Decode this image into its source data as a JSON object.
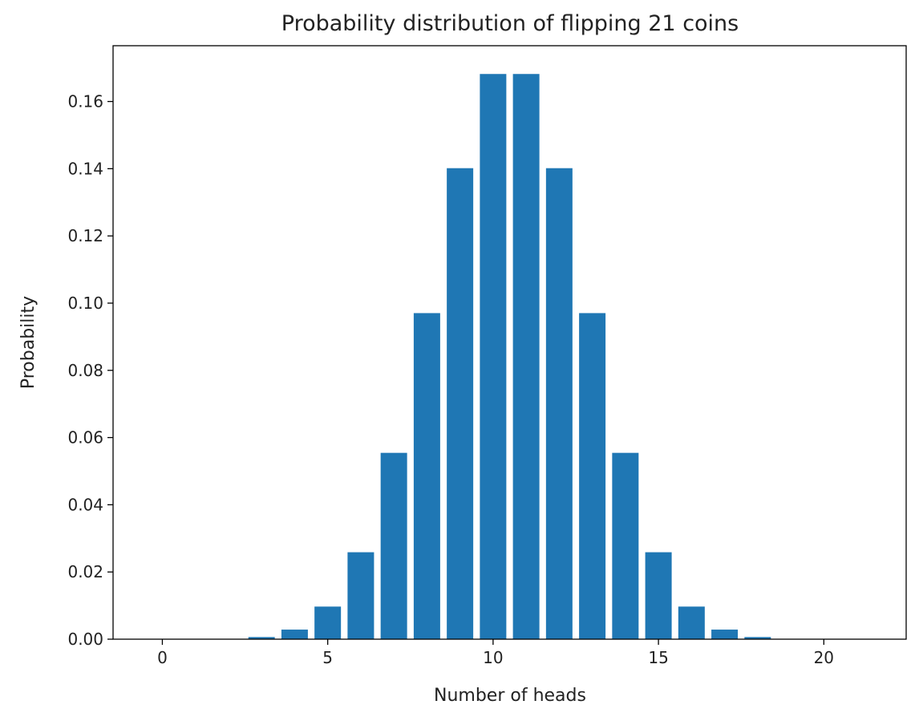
{
  "chart_data": {
    "type": "bar",
    "title": "Probability distribution of flipping 21 coins",
    "xlabel": "Number of heads",
    "ylabel": "Probability",
    "x": [
      0,
      1,
      2,
      3,
      4,
      5,
      6,
      7,
      8,
      9,
      10,
      11,
      12,
      13,
      14,
      15,
      16,
      17,
      18,
      19,
      20,
      21
    ],
    "values": [
      5e-07,
      1e-05,
      0.0001,
      0.000634,
      0.002854,
      0.009703,
      0.025875,
      0.055447,
      0.097031,
      0.140157,
      0.168188,
      0.168188,
      0.140157,
      0.097031,
      0.055447,
      0.025875,
      0.009703,
      0.002854,
      0.000634,
      0.0001,
      1e-05,
      5e-07
    ],
    "xlim": [
      -1.49,
      22.49
    ],
    "ylim": [
      0,
      0.1766
    ],
    "xticks": [
      "0",
      "5",
      "10",
      "15",
      "20"
    ],
    "yticks": [
      "0.00",
      "0.02",
      "0.04",
      "0.06",
      "0.08",
      "0.10",
      "0.12",
      "0.14",
      "0.16"
    ],
    "bar_color": "#1f77b4",
    "grid": false
  }
}
